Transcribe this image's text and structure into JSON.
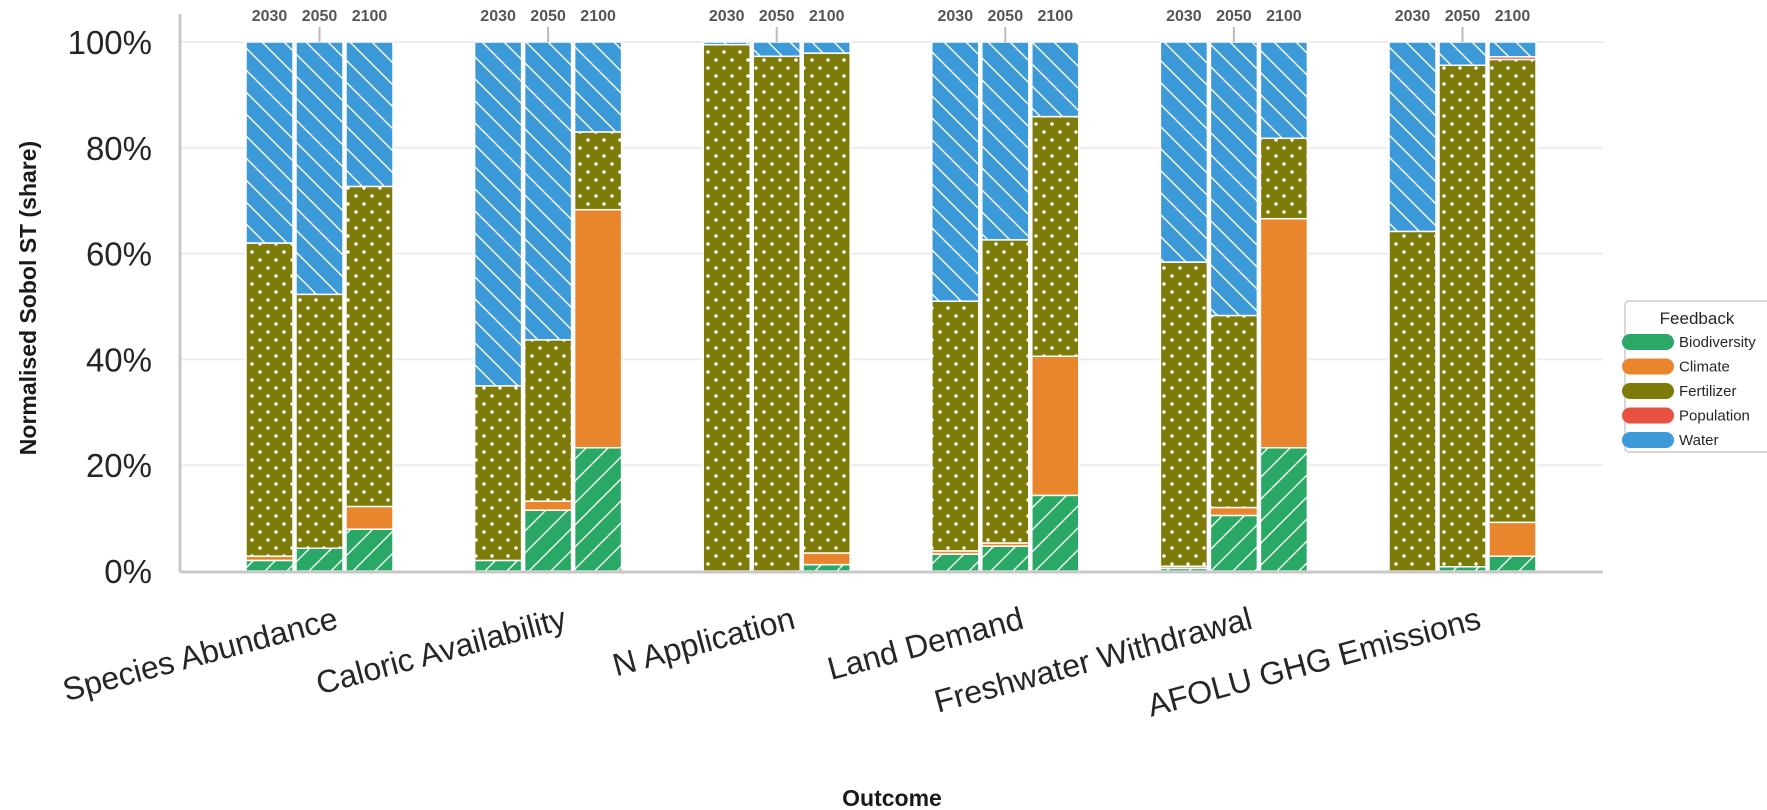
{
  "chart_data": {
    "type": "bar",
    "stacked": true,
    "normalized": true,
    "ylabel": "Normalised Sobol ST (share)",
    "xlabel": "Outcome",
    "y_ticks": [
      "0%",
      "20%",
      "40%",
      "60%",
      "80%",
      "100%"
    ],
    "ylim": [
      0,
      100
    ],
    "grid": true,
    "categories": [
      "Species Abundance",
      "Caloric Availability",
      "N Application",
      "Land Demand",
      "Freshwater Withdrawal",
      "AFOLU GHG Emissions"
    ],
    "years": [
      "2030",
      "2050",
      "2100"
    ],
    "legend": {
      "title": "Feedback",
      "placement": "right",
      "entries": [
        "Biodiversity",
        "Climate",
        "Fertilizer",
        "Population",
        "Water"
      ]
    },
    "series": [
      {
        "name": "Biodiversity",
        "color": "#2aa865",
        "pattern": "diagonal-forward",
        "values": [
          [
            2.0,
            4.3,
            7.9
          ],
          [
            2.0,
            11.5,
            23.3
          ],
          [
            0.0,
            0.0,
            1.2
          ],
          [
            3.2,
            4.7,
            14.3
          ],
          [
            0.5,
            10.5,
            23.3
          ],
          [
            0.0,
            0.8,
            2.8
          ]
        ]
      },
      {
        "name": "Climate",
        "color": "#e8852d",
        "pattern": "none",
        "values": [
          [
            0.8,
            0.0,
            4.3
          ],
          [
            0.0,
            1.7,
            45.0
          ],
          [
            0.0,
            0.0,
            2.2
          ],
          [
            0.6,
            0.6,
            26.3
          ],
          [
            0.4,
            1.5,
            43.3
          ],
          [
            0.0,
            0.0,
            6.4
          ]
        ]
      },
      {
        "name": "Fertilizer",
        "color": "#7d7c0a",
        "pattern": "dots",
        "values": [
          [
            59.2,
            48.0,
            60.5
          ],
          [
            33.0,
            30.5,
            14.7
          ],
          [
            99.5,
            97.3,
            94.5
          ],
          [
            47.2,
            57.3,
            45.3
          ],
          [
            57.5,
            36.3,
            15.2
          ],
          [
            64.2,
            94.8,
            87.5
          ]
        ]
      },
      {
        "name": "Population",
        "color": "#e8503f",
        "pattern": "none",
        "values": [
          [
            0.0,
            0.0,
            0.0
          ],
          [
            0.0,
            0.0,
            0.0
          ],
          [
            0.0,
            0.0,
            0.0
          ],
          [
            0.0,
            0.0,
            0.0
          ],
          [
            0.0,
            0.0,
            0.0
          ],
          [
            0.0,
            0.0,
            0.5
          ]
        ]
      },
      {
        "name": "Water",
        "color": "#3d9ad9",
        "pattern": "diagonal-back",
        "values": [
          [
            38.0,
            47.7,
            27.3
          ],
          [
            65.0,
            56.3,
            17.0
          ],
          [
            0.5,
            2.7,
            2.1
          ],
          [
            49.0,
            37.4,
            14.1
          ],
          [
            41.6,
            51.7,
            18.2
          ],
          [
            35.8,
            4.4,
            2.8
          ]
        ]
      }
    ]
  }
}
